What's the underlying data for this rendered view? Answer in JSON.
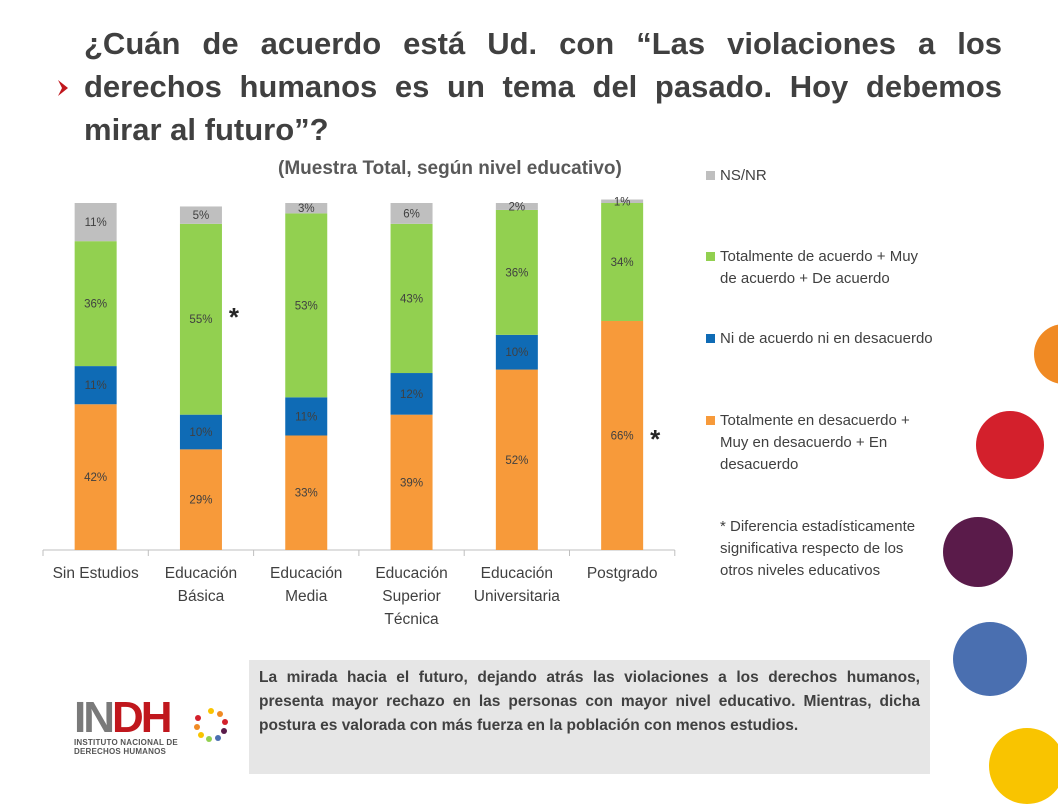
{
  "title": "¿Cuán de acuerdo está Ud. con “Las violaciones a los derechos humanos es un tema del pasado. Hoy debemos mirar al futuro”?",
  "colors": {
    "orange": "#f79a3a",
    "blue": "#0f6bb5",
    "green": "#92d050",
    "gray": "#bfbfbf",
    "bullet": "#c0171d"
  },
  "chart_data": {
    "type": "bar",
    "subtitle": "(Muestra Total, según nivel educativo)",
    "stacked": true,
    "categories": [
      "Sin Estudios",
      "Educación Básica",
      "Educación Media",
      "Educación Superior Técnica",
      "Educación Universitaria",
      "Postgrado"
    ],
    "category_lines": [
      [
        "Sin Estudios"
      ],
      [
        "Educación",
        "Básica"
      ],
      [
        "Educación",
        "Media"
      ],
      [
        "Educación",
        "Superior",
        "Técnica"
      ],
      [
        "Educación",
        "Universitaria"
      ],
      [
        "Postgrado"
      ]
    ],
    "series": [
      {
        "name": "Totalmente en desacuerdo + Muy en desacuerdo + En desacuerdo",
        "values": [
          42,
          29,
          33,
          39,
          52,
          66
        ],
        "labels": [
          "42%",
          "29%",
          "33%",
          "39%",
          "52%",
          "66%"
        ],
        "color": "#f79a3a"
      },
      {
        "name": "Ni de acuerdo ni en desacuerdo",
        "values": [
          11,
          10,
          11,
          12,
          10,
          0
        ],
        "labels": [
          "11%",
          "10%",
          "11%",
          "12%",
          "10%",
          ""
        ],
        "color": "#0f6bb5"
      },
      {
        "name": "Totalmente de acuerdo + Muy de acuerdo + De acuerdo",
        "values": [
          36,
          55,
          53,
          43,
          36,
          34
        ],
        "labels": [
          "36%",
          "55%",
          "53%",
          "43%",
          "36%",
          "34%"
        ],
        "color": "#92d050"
      },
      {
        "name": "NS/NR",
        "values": [
          11,
          5,
          3,
          6,
          2,
          1
        ],
        "labels": [
          "11%",
          "5%",
          "3%",
          "6%",
          "2%",
          "1%"
        ],
        "color": "#bfbfbf"
      }
    ],
    "ylim": [
      0,
      100
    ],
    "significance_markers": [
      {
        "category": "Educación Básica",
        "symbol": "*"
      },
      {
        "category": "Postgrado",
        "symbol": "*"
      }
    ]
  },
  "legend": [
    {
      "label": "NS/NR",
      "color": "#bfbfbf"
    },
    {
      "label": "Totalmente de acuerdo + Muy de acuerdo + De acuerdo",
      "color": "#92d050"
    },
    {
      "label": "Ni de acuerdo ni en desacuerdo",
      "color": "#0f6bb5"
    },
    {
      "label": "Totalmente en desacuerdo + Muy en desacuerdo + En desacuerdo",
      "color": "#f79a3a"
    }
  ],
  "note": "* Diferencia estadísticamente significativa respecto de los otros niveles educativos",
  "insight": "La mirada hacia el futuro, dejando atrás las violaciones a los derechos humanos, presenta mayor rechazo en las personas con mayor nivel educativo. Mientras, dicha postura es valorada con más fuerza en la población con menos estudios.",
  "logo": {
    "text_in": "IN",
    "text_dh": "DH",
    "sub1": "INSTITUTO NACIONAL DE",
    "sub2": "DERECHOS HUMANOS"
  },
  "decor_circles": [
    "#f08a24",
    "#d3202c",
    "#5a1b4a",
    "#4a6fb0",
    "#f9c400"
  ]
}
